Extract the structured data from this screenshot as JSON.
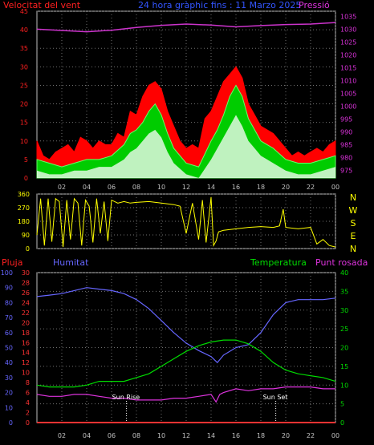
{
  "colors": {
    "background": "#000000",
    "frame": "#c0c0c0",
    "grid": "#707070",
    "wind": "#ff0000",
    "gust_fill": "#ff0000",
    "mean_fill": "#00cc00",
    "min_fill": "#ffffff",
    "pressure": "#cc33cc",
    "direction": "#ffff00",
    "rain": "#ff3333",
    "humidity": "#6666ff",
    "temperature": "#00dd00",
    "dewpoint": "#dd33dd",
    "sun_text": "#ffffff"
  },
  "header": {
    "wind_label": "Velocitat del vent",
    "title": "24 hora gràphic fins : 11 Marzo 2025",
    "pressure_label": "Pressió"
  },
  "direction_letters": [
    "N",
    "W",
    "S",
    "E",
    "N"
  ],
  "bottom_header": {
    "rain_label": "Pluja",
    "humidity_label": "Humitat",
    "temp_label": "Temperatura",
    "dew_label": "Punt rosada"
  },
  "sun": {
    "rise_label": "Sun Rise",
    "set_label": "Sun Set",
    "rise_hour": 7.2,
    "set_hour": 19.2
  },
  "chart_data": [
    {
      "type": "area",
      "title": "24 hora gràphic fins : 11 Marzo 2025",
      "x_ticks": [
        "02",
        "04",
        "06",
        "08",
        "10",
        "12",
        "14",
        "16",
        "18",
        "20",
        "22",
        "00"
      ],
      "xlim": [
        0,
        24
      ],
      "y_left": {
        "label": "Velocitat del vent",
        "ticks": [
          "0",
          "5",
          "10",
          "15",
          "20",
          "25",
          "30",
          "35",
          "40",
          "45"
        ],
        "lim": [
          0,
          45
        ]
      },
      "y_right": {
        "label": "Pressió",
        "ticks": [
          "975",
          "980",
          "985",
          "990",
          "995",
          "1000",
          "1005",
          "1010",
          "1015",
          "1020",
          "1025",
          "1030",
          "1035"
        ],
        "lim": [
          972,
          1037
        ]
      },
      "series": [
        {
          "name": "Velocitat del vent",
          "kind": "gust",
          "x": [
            0,
            0.5,
            1,
            1.5,
            2,
            2.5,
            3,
            3.5,
            4,
            4.5,
            5,
            5.5,
            6,
            6.5,
            7,
            7.5,
            8,
            8.5,
            9,
            9.5,
            10,
            10.5,
            11,
            11.5,
            12,
            12.5,
            13,
            13.5,
            14,
            14.5,
            15,
            15.5,
            16,
            16.5,
            17,
            17.5,
            18,
            18.5,
            19,
            19.5,
            20,
            20.5,
            21,
            21.5,
            22,
            22.5,
            23,
            23.5,
            24
          ],
          "values": [
            10,
            6,
            5,
            7,
            8,
            9,
            7,
            11,
            10,
            8,
            10,
            9,
            9,
            12,
            11,
            18,
            17,
            22,
            25,
            26,
            24,
            18,
            14,
            10,
            8,
            9,
            8,
            16,
            18,
            22,
            26,
            28,
            30,
            27,
            20,
            17,
            14,
            13,
            12,
            10,
            8,
            6,
            7,
            6,
            7,
            8,
            7,
            9,
            10
          ]
        },
        {
          "name": "mean",
          "kind": "mean",
          "x": [
            0,
            1,
            2,
            3,
            4,
            5,
            6,
            7,
            7.5,
            8,
            8.5,
            9,
            9.5,
            10,
            10.5,
            11,
            12,
            13,
            14,
            14.5,
            15,
            15.5,
            16,
            16.5,
            17,
            17.5,
            18,
            18.5,
            19,
            20,
            21,
            22,
            23,
            24
          ],
          "values": [
            5,
            4,
            3,
            4,
            5,
            5,
            6,
            9,
            12,
            13,
            15,
            18,
            20,
            17,
            12,
            8,
            4,
            3,
            10,
            13,
            17,
            22,
            25,
            22,
            16,
            13,
            10,
            9,
            8,
            5,
            4,
            4,
            5,
            6
          ]
        },
        {
          "name": "min",
          "kind": "min",
          "x": [
            0,
            1,
            2,
            3,
            4,
            5,
            6,
            7,
            7.5,
            8,
            8.5,
            9,
            9.5,
            10,
            10.5,
            11,
            12,
            13,
            14,
            14.5,
            15,
            15.5,
            16,
            16.5,
            17,
            17.5,
            18,
            18.5,
            19,
            20,
            21,
            22,
            23,
            24
          ],
          "values": [
            2,
            1,
            1,
            2,
            2,
            3,
            3,
            5,
            7,
            8,
            10,
            12,
            13,
            11,
            7,
            4,
            1,
            0,
            5,
            8,
            11,
            14,
            17,
            14,
            10,
            8,
            6,
            5,
            4,
            2,
            1,
            1,
            2,
            3
          ]
        },
        {
          "name": "Pressió",
          "kind": "pressure",
          "x": [
            0,
            2,
            4,
            6,
            8,
            10,
            12,
            14,
            16,
            18,
            20,
            22,
            24
          ],
          "values": [
            1030,
            1029.5,
            1029,
            1029.6,
            1030.7,
            1031.5,
            1032,
            1031.6,
            1030.9,
            1031.4,
            1031.8,
            1032,
            1032.6
          ]
        }
      ]
    },
    {
      "type": "line",
      "x_ticks": [
        "02",
        "04",
        "06",
        "08",
        "10",
        "12",
        "14",
        "16",
        "18",
        "20",
        "22",
        "00"
      ],
      "xlim": [
        0,
        24
      ],
      "y_left": {
        "ticks": [
          "0",
          "90",
          "180",
          "270",
          "360"
        ],
        "lim": [
          0,
          360
        ]
      },
      "y_right": {
        "letters": [
          "N",
          "W",
          "S",
          "E",
          "N"
        ]
      },
      "series": [
        {
          "name": "direction",
          "x": [
            0,
            0.3,
            0.6,
            0.9,
            1.2,
            1.5,
            1.8,
            2.1,
            2.4,
            2.7,
            3,
            3.3,
            3.6,
            3.9,
            4.2,
            4.5,
            4.8,
            5.1,
            5.4,
            5.7,
            6,
            6.5,
            7,
            7.5,
            8,
            9,
            10,
            11,
            11.5,
            12,
            12.5,
            13,
            13.3,
            13.6,
            14,
            14.2,
            14.4,
            14.6,
            15,
            16,
            17,
            18,
            19,
            19.5,
            19.8,
            20,
            21,
            22,
            22.5,
            23,
            23.5,
            24
          ],
          "values": [
            90,
            330,
            20,
            330,
            45,
            330,
            310,
            10,
            320,
            60,
            330,
            300,
            20,
            320,
            280,
            40,
            330,
            100,
            310,
            50,
            320,
            300,
            310,
            300,
            305,
            310,
            300,
            290,
            280,
            100,
            300,
            60,
            320,
            40,
            340,
            20,
            50,
            110,
            120,
            130,
            140,
            145,
            140,
            150,
            260,
            140,
            130,
            140,
            30,
            60,
            20,
            10
          ]
        }
      ]
    },
    {
      "type": "line",
      "x_ticks": [
        "02",
        "04",
        "06",
        "08",
        "10",
        "12",
        "14",
        "16",
        "18",
        "20",
        "22",
        "00"
      ],
      "xlim": [
        0,
        24
      ],
      "y_left_rain": {
        "label": "Pluja",
        "ticks": [
          "0",
          "10",
          "20",
          "30",
          "40",
          "50",
          "60",
          "70",
          "80",
          "90",
          "100"
        ],
        "lim": [
          0,
          100
        ]
      },
      "y_left_temp": {
        "ticks": [
          "0",
          "2",
          "4",
          "6",
          "8",
          "10",
          "12",
          "14",
          "16",
          "18",
          "20",
          "22",
          "24",
          "26",
          "28",
          "30"
        ],
        "lim": [
          0,
          30
        ]
      },
      "y_right": {
        "label": "Temperatura",
        "ticks": [
          "0",
          "5",
          "10",
          "15",
          "20",
          "25",
          "30",
          "35",
          "40"
        ],
        "lim": [
          0,
          40
        ]
      },
      "series": [
        {
          "name": "Pluja",
          "axis": "rain",
          "x": [
            0,
            24
          ],
          "values": [
            0,
            0
          ]
        },
        {
          "name": "Humitat",
          "axis": "rain",
          "x": [
            0,
            1,
            2,
            3,
            4,
            5,
            6,
            7,
            8,
            9,
            10,
            11,
            12,
            13,
            14,
            14.5,
            15,
            16,
            17,
            18,
            19,
            20,
            21,
            22,
            23,
            24
          ],
          "values": [
            84,
            85,
            86,
            88,
            90,
            89,
            88,
            86,
            82,
            76,
            68,
            60,
            53,
            48,
            44,
            40,
            45,
            50,
            52,
            60,
            72,
            80,
            82,
            82,
            82,
            83
          ]
        },
        {
          "name": "Temperatura",
          "axis": "temp_right",
          "x": [
            0,
            1,
            2,
            3,
            4,
            5,
            6,
            7,
            8,
            9,
            10,
            11,
            12,
            13,
            14,
            15,
            16,
            17,
            18,
            19,
            20,
            21,
            22,
            23,
            24
          ],
          "values": [
            10,
            9.5,
            9.5,
            9.5,
            10,
            11,
            11,
            11,
            12,
            13,
            15,
            17,
            19,
            20.5,
            21.5,
            22,
            22,
            21,
            19,
            16,
            14,
            13,
            12.5,
            12,
            11
          ]
        },
        {
          "name": "Punt rosada",
          "axis": "temp_right",
          "x": [
            0,
            1,
            2,
            3,
            4,
            5,
            6,
            7,
            8,
            9,
            10,
            11,
            12,
            13,
            14,
            14.4,
            14.7,
            15,
            16,
            17,
            18,
            19,
            20,
            21,
            22,
            23,
            24
          ],
          "values": [
            7.5,
            7,
            7,
            7.5,
            7.5,
            7,
            6.5,
            6.5,
            6,
            6,
            6,
            6.5,
            6.5,
            7,
            7.5,
            5.5,
            7.5,
            8,
            9,
            8.5,
            9,
            9,
            9.5,
            9.5,
            9.5,
            9,
            9
          ]
        }
      ]
    }
  ]
}
